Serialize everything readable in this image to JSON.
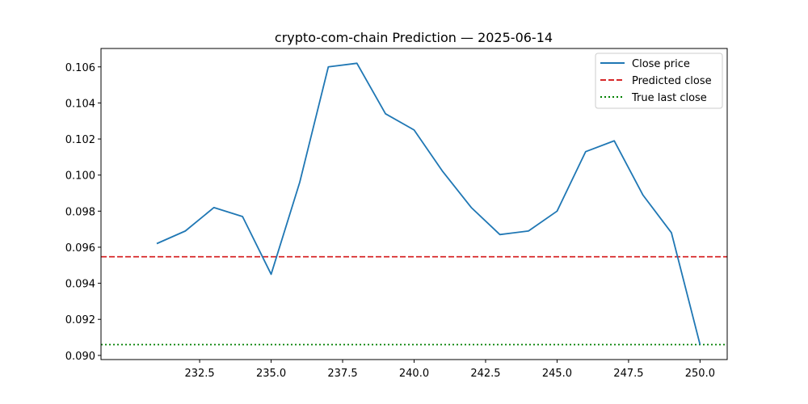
{
  "chart_data": {
    "type": "line",
    "title": "crypto-com-chain Prediction — 2025-06-14",
    "xlabel": "",
    "ylabel": "",
    "xlim": [
      229.05,
      250.95
    ],
    "ylim": [
      0.08977,
      0.10702
    ],
    "x_ticks": [
      232.5,
      235.0,
      237.5,
      240.0,
      242.5,
      245.0,
      247.5,
      250.0
    ],
    "x_tick_labels": [
      "232.5",
      "235.0",
      "237.5",
      "240.0",
      "242.5",
      "245.0",
      "247.5",
      "250.0"
    ],
    "y_ticks": [
      0.09,
      0.092,
      0.094,
      0.096,
      0.098,
      0.1,
      0.102,
      0.104,
      0.106
    ],
    "y_tick_labels": [
      "0.090",
      "0.092",
      "0.094",
      "0.096",
      "0.098",
      "0.100",
      "0.102",
      "0.104",
      "0.106"
    ],
    "series": [
      {
        "name": "Close price",
        "style": "solid",
        "color": "#1f77b4",
        "x": [
          231,
          232,
          233,
          234,
          235,
          236,
          237,
          238,
          239,
          240,
          241,
          242,
          243,
          244,
          245,
          246,
          247,
          248,
          249,
          250
        ],
        "y": [
          0.0962,
          0.0969,
          0.0982,
          0.0977,
          0.0945,
          0.0996,
          0.106,
          0.1062,
          0.1034,
          0.1025,
          0.1002,
          0.0982,
          0.0967,
          0.0969,
          0.098,
          0.1013,
          0.1019,
          0.0989,
          0.0968,
          0.0906
        ]
      },
      {
        "name": "Predicted close",
        "style": "dashed",
        "color": "#d62728",
        "y": 0.09547
      },
      {
        "name": "True last close",
        "style": "dotted",
        "color": "#008000",
        "y": 0.0906
      }
    ],
    "legend_position": "top-right",
    "grid": false
  }
}
